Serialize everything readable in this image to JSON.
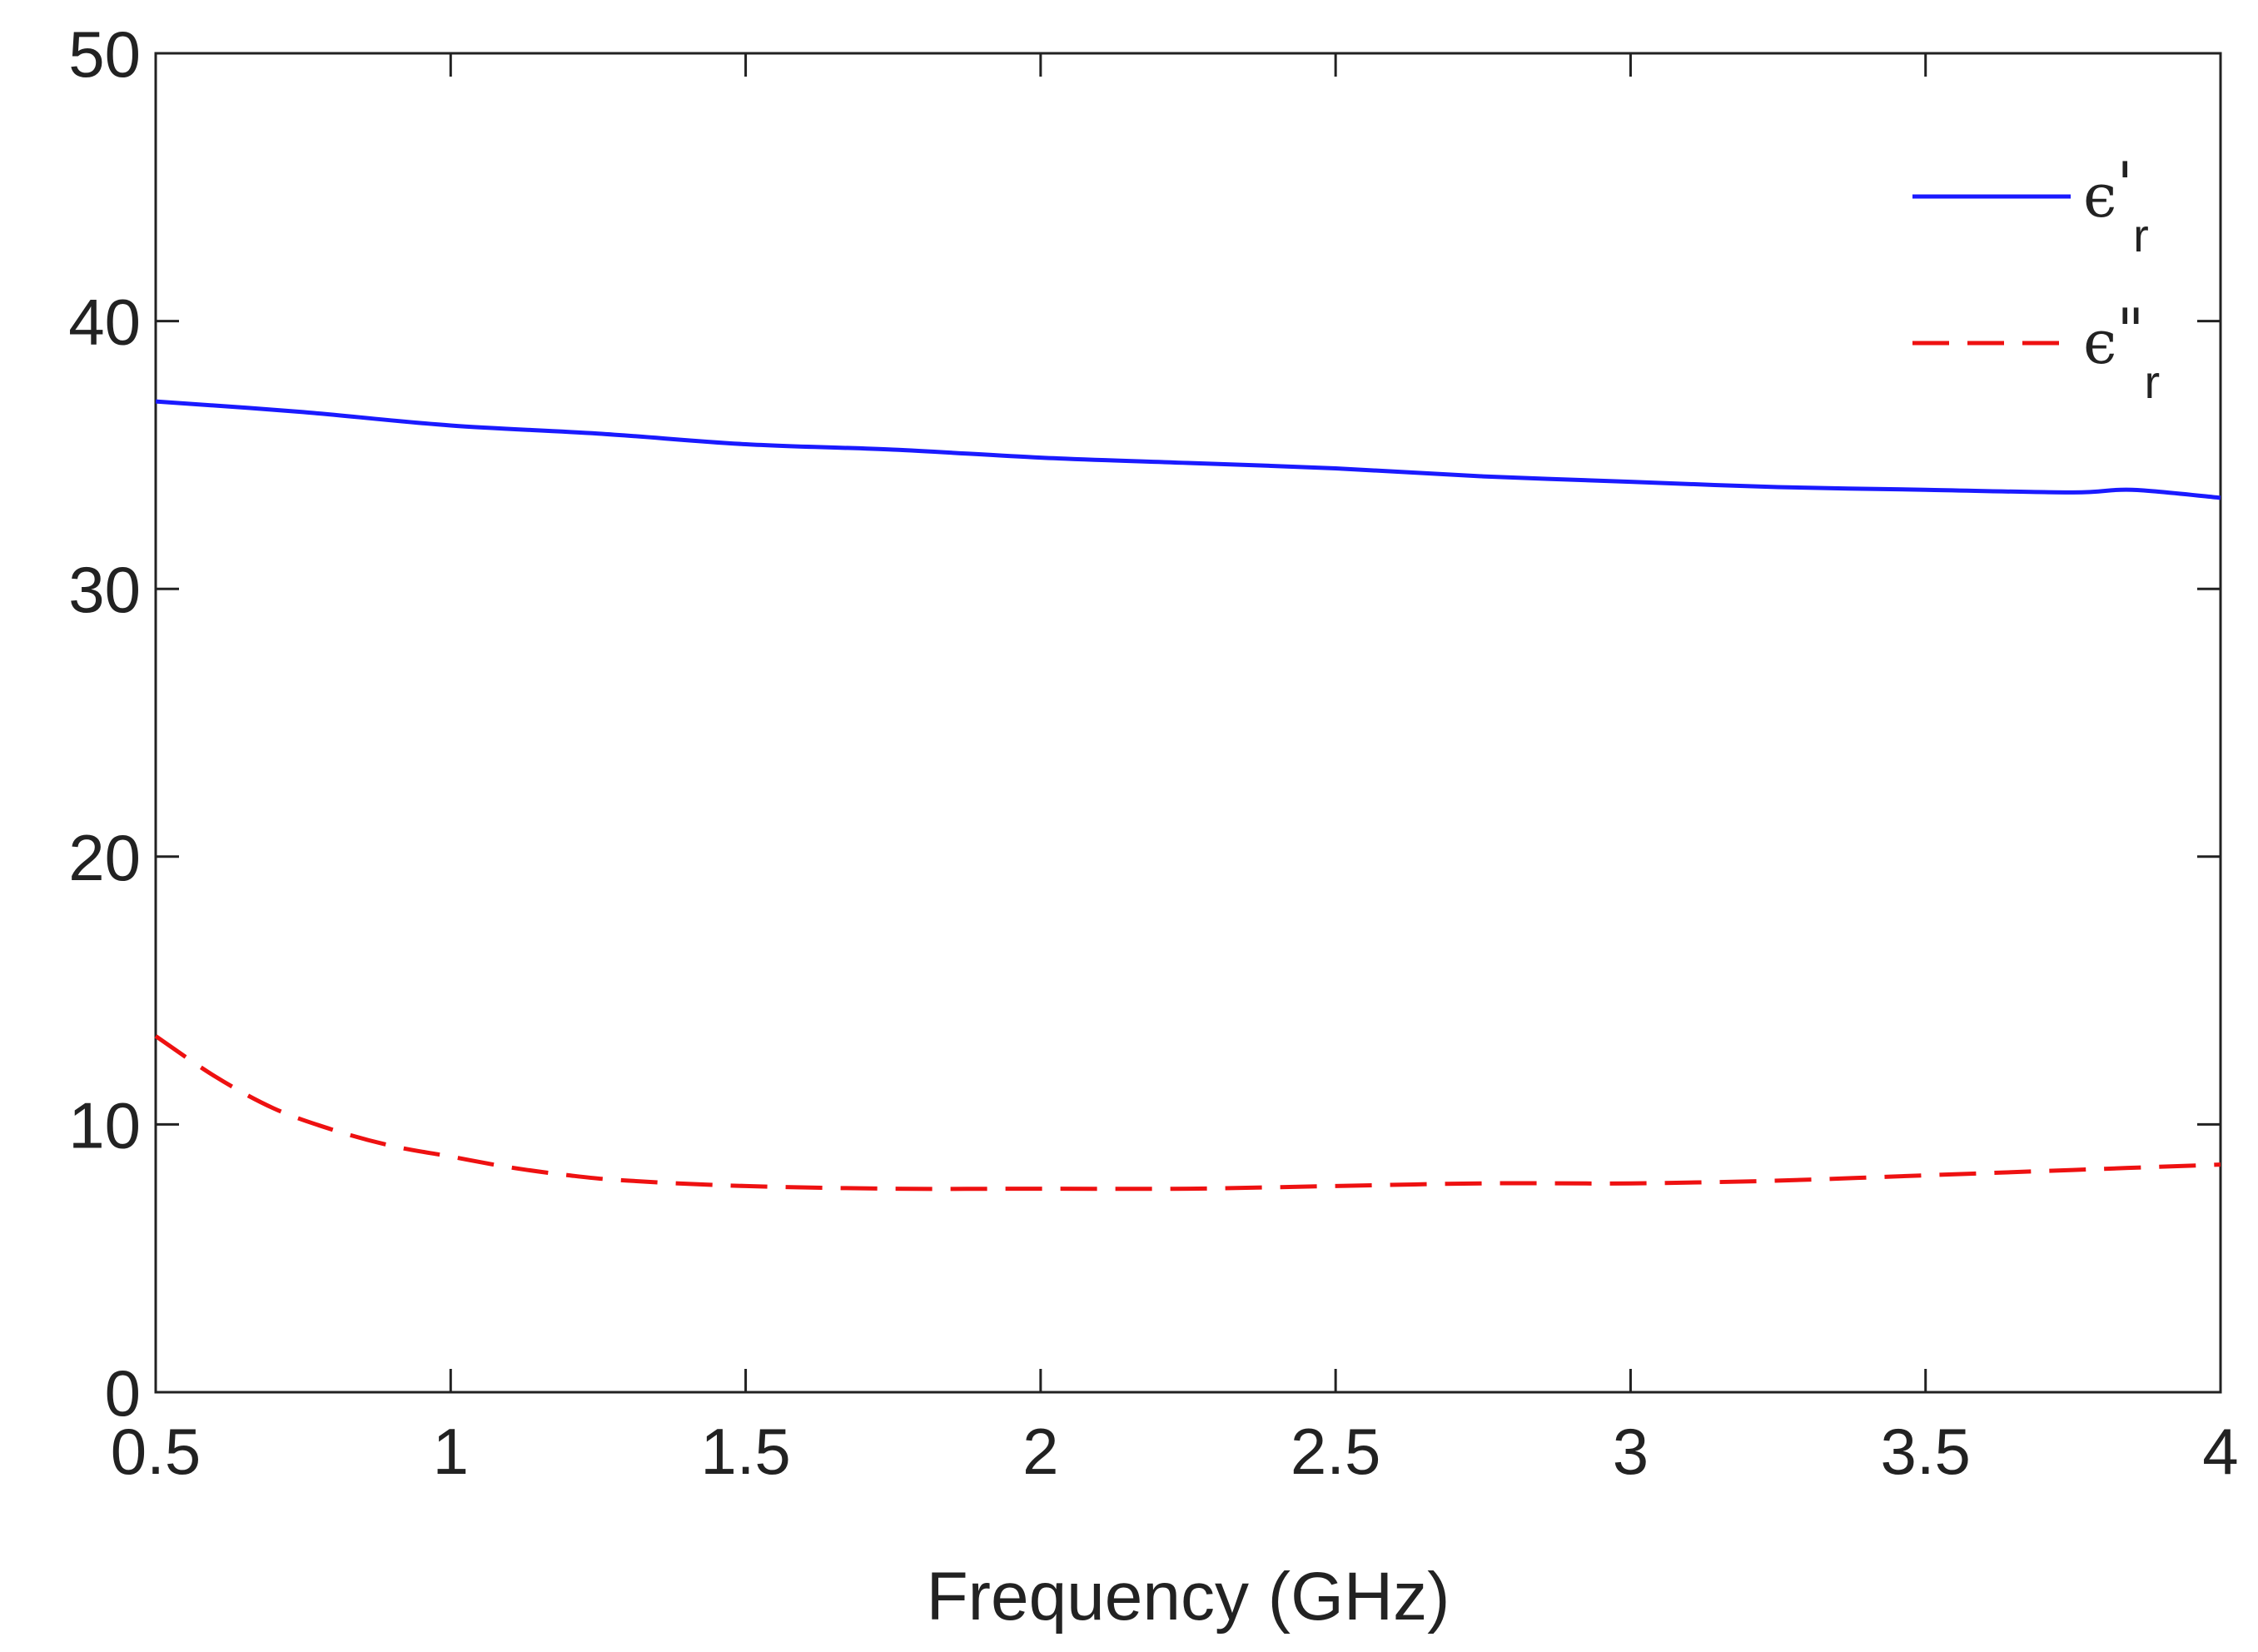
{
  "chart_data": {
    "type": "line",
    "title": "",
    "xlabel": "Frequency (GHz)",
    "ylabel": "",
    "xlim": [
      0.5,
      4
    ],
    "ylim": [
      0,
      50
    ],
    "xticks": [
      0.5,
      1,
      1.5,
      2,
      2.5,
      3,
      3.5,
      4
    ],
    "xtick_labels": [
      "0.5",
      "1",
      "1.5",
      "2",
      "2.5",
      "3",
      "3.5",
      "4"
    ],
    "yticks": [
      0,
      10,
      20,
      30,
      40,
      50
    ],
    "ytick_labels": [
      "0",
      "10",
      "20",
      "30",
      "40",
      "50"
    ],
    "legend_position": "top-right",
    "series": [
      {
        "name": "ε'r",
        "legend_symbol": "ϵ",
        "legend_prime": "'",
        "legend_sub": "r",
        "color": "#1a1aff",
        "style": "solid",
        "x": [
          0.5,
          0.75,
          1.0,
          1.25,
          1.5,
          1.75,
          2.0,
          2.25,
          2.5,
          2.75,
          3.0,
          3.25,
          3.5,
          3.75,
          3.85,
          4.0
        ],
        "y": [
          37.0,
          36.6,
          36.1,
          35.8,
          35.4,
          35.2,
          34.9,
          34.7,
          34.5,
          34.2,
          34.0,
          33.8,
          33.7,
          33.6,
          33.7,
          33.4
        ]
      },
      {
        "name": "ε''r",
        "legend_symbol": "ϵ",
        "legend_prime": "\"",
        "legend_sub": "r",
        "color": "#ee1111",
        "style": "dashed",
        "x": [
          0.5,
          0.6,
          0.7,
          0.8,
          0.9,
          1.0,
          1.1,
          1.2,
          1.3,
          1.5,
          1.75,
          2.0,
          2.25,
          2.5,
          2.75,
          3.0,
          3.25,
          3.5,
          3.75,
          4.0
        ],
        "y": [
          13.3,
          11.8,
          10.6,
          9.8,
          9.2,
          8.8,
          8.4,
          8.1,
          7.9,
          7.7,
          7.6,
          7.6,
          7.6,
          7.7,
          7.8,
          7.8,
          7.9,
          8.1,
          8.3,
          8.5
        ]
      }
    ]
  }
}
